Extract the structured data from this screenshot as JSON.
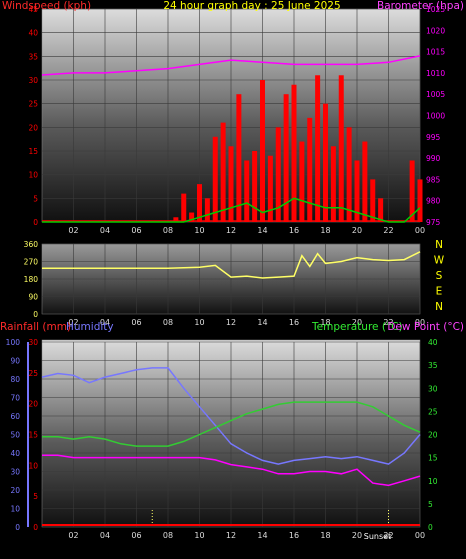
{
  "header": {
    "title": "24 hour graph day : 25 June 2025",
    "wind_label": "Windspeed (kph)",
    "baro_label": "Barometer (hpa)"
  },
  "middle": {
    "compass": [
      "N",
      "W",
      "S",
      "E",
      "N"
    ]
  },
  "bottom": {
    "rain_label": "Rainfall (mm)",
    "hum_label": "Humidity",
    "temp_label": "Temperature (°C)",
    "dew_label": "Dew Point (°C)",
    "sun_label": "Sunset"
  },
  "colors": {
    "wind": "#ff0000",
    "gust": "#ff0000",
    "avg_wind": "#00cc00",
    "baro": "#ff00ff",
    "direction": "#ffff66",
    "humidity": "#7777ff",
    "temperature": "#33cc33",
    "dew_point": "#ff00ff",
    "rain": "#ff0000",
    "title": "#ffff00"
  },
  "chart_data": [
    {
      "id": "wind-baro",
      "type": "line",
      "x_ticks": [
        "02",
        "04",
        "06",
        "08",
        "10",
        "12",
        "14",
        "16",
        "18",
        "20",
        "22",
        "00"
      ],
      "wind_axis": {
        "label": "Windspeed (kph)",
        "ylim": [
          0,
          45
        ],
        "ticks": [
          0,
          5,
          10,
          15,
          20,
          25,
          30,
          35,
          40,
          45
        ]
      },
      "baro_axis": {
        "label": "Barometer (hpa)",
        "ylim": [
          975,
          1025
        ],
        "ticks": [
          975,
          980,
          985,
          990,
          995,
          1000,
          1005,
          1010,
          1015,
          1020,
          1025
        ]
      },
      "series": [
        {
          "name": "Barometer",
          "axis": "baro",
          "x": [
            0,
            2,
            4,
            6,
            8,
            10,
            12,
            14,
            16,
            18,
            20,
            22,
            24
          ],
          "values": [
            1009.5,
            1010,
            1010,
            1010.5,
            1011,
            1012,
            1013,
            1012.5,
            1012,
            1012,
            1012,
            1012.5,
            1014
          ]
        },
        {
          "name": "Windspeed",
          "axis": "wind",
          "kind": "gusts",
          "x": [
            0,
            1,
            2,
            3,
            4,
            5,
            6,
            7,
            8,
            8.5,
            9,
            9.5,
            10,
            10.5,
            11,
            11.5,
            12,
            12.5,
            13,
            13.5,
            14,
            14.5,
            15,
            15.5,
            16,
            16.5,
            17,
            17.5,
            18,
            18.5,
            19,
            19.5,
            20,
            20.5,
            21,
            21.5,
            22,
            22.5,
            23,
            23.5,
            24
          ],
          "values": [
            0,
            0,
            0,
            0,
            0,
            0,
            0,
            0,
            0,
            1,
            6,
            2,
            8,
            5,
            18,
            21,
            16,
            27,
            13,
            15,
            30,
            14,
            20,
            27,
            29,
            17,
            22,
            31,
            25,
            16,
            31,
            20,
            13,
            17,
            9,
            5,
            0,
            0,
            0,
            13,
            9
          ]
        },
        {
          "name": "Average wind",
          "axis": "wind",
          "x": [
            0,
            8,
            9,
            10,
            11,
            12,
            13,
            14,
            15,
            16,
            17,
            18,
            19,
            20,
            21,
            22,
            23,
            24
          ],
          "values": [
            0,
            0,
            0,
            1,
            2,
            3,
            4,
            2,
            3,
            5,
            4,
            3,
            3,
            2,
            1,
            0,
            0,
            3
          ]
        }
      ]
    },
    {
      "id": "wind-direction",
      "type": "line",
      "x_ticks": [
        "02",
        "04",
        "06",
        "08",
        "10",
        "12",
        "14",
        "16",
        "18",
        "20",
        "22",
        "00"
      ],
      "ylim": [
        0,
        360
      ],
      "y_ticks": [
        0,
        90,
        180,
        270,
        360
      ],
      "series": [
        {
          "name": "Wind direction",
          "x": [
            0,
            2,
            4,
            6,
            8,
            10,
            11,
            12,
            13,
            14,
            15,
            16,
            16.5,
            17,
            17.5,
            18,
            19,
            20,
            21,
            22,
            23,
            24
          ],
          "values": [
            235,
            235,
            235,
            235,
            235,
            240,
            250,
            190,
            195,
            185,
            190,
            195,
            300,
            245,
            310,
            260,
            270,
            290,
            280,
            275,
            280,
            320
          ]
        }
      ]
    },
    {
      "id": "temp-hum-rain",
      "type": "line",
      "x_ticks": [
        "02",
        "04",
        "06",
        "08",
        "10",
        "12",
        "14",
        "16",
        "18",
        "20",
        "22",
        "00"
      ],
      "humidity_axis": {
        "label": "Humidity",
        "ylim": [
          0,
          100
        ],
        "ticks": [
          0,
          10,
          20,
          30,
          40,
          50,
          60,
          70,
          80,
          90,
          100
        ]
      },
      "rain_axis": {
        "label": "Rainfall (mm)",
        "ylim": [
          0,
          30
        ],
        "ticks": [
          0,
          5,
          10,
          15,
          20,
          25,
          30
        ]
      },
      "temp_axis": {
        "label": "Temperature (°C)",
        "ylim": [
          0,
          40
        ],
        "ticks": [
          0,
          5,
          10,
          15,
          20,
          25,
          30,
          35,
          40
        ]
      },
      "markers": [
        {
          "x": 7
        },
        {
          "x": 22
        }
      ],
      "sunset_label_x": 21.3,
      "series": [
        {
          "name": "Humidity",
          "axis": "humidity",
          "x": [
            0,
            1,
            2,
            3,
            4,
            5,
            6,
            7,
            8,
            9,
            10,
            11,
            12,
            13,
            14,
            15,
            16,
            17,
            18,
            19,
            20,
            21,
            22,
            23,
            24
          ],
          "values": [
            81,
            83,
            82,
            78,
            81,
            83,
            85,
            86,
            86,
            75,
            65,
            55,
            45,
            40,
            36,
            34,
            36,
            37,
            38,
            37,
            38,
            36,
            34,
            40,
            50
          ]
        },
        {
          "name": "Temperature (°C)",
          "axis": "temp",
          "x": [
            0,
            1,
            2,
            3,
            4,
            5,
            6,
            7,
            8,
            9,
            10,
            11,
            12,
            13,
            14,
            15,
            16,
            17,
            18,
            19,
            20,
            21,
            22,
            23,
            24
          ],
          "values": [
            19.5,
            19.5,
            19,
            19.5,
            19,
            18,
            17.5,
            17.5,
            17.5,
            18.5,
            20,
            21.5,
            23,
            24.5,
            25.5,
            26.5,
            27,
            27,
            27,
            27,
            27,
            26,
            24,
            22,
            20.5
          ]
        },
        {
          "name": "Dew Point (°C)",
          "axis": "temp",
          "x": [
            0,
            1,
            2,
            3,
            4,
            5,
            6,
            7,
            8,
            9,
            10,
            11,
            12,
            13,
            14,
            15,
            16,
            17,
            18,
            19,
            20,
            21,
            22,
            23,
            24
          ],
          "values": [
            15.5,
            15.5,
            15,
            15,
            15,
            15,
            15,
            15,
            15,
            15,
            15,
            14.5,
            13.5,
            13,
            12.5,
            11.5,
            11.5,
            12,
            12,
            11.5,
            12.5,
            9.5,
            9,
            10,
            11
          ]
        },
        {
          "name": "Rainfall (mm)",
          "axis": "rain",
          "x": [
            0,
            24
          ],
          "values": [
            0,
            0
          ]
        }
      ]
    }
  ]
}
